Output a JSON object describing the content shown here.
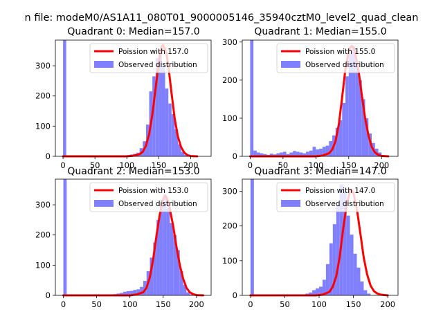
{
  "figure": {
    "suptitle": "n file: modeM0/AS1A11_080T01_9000005146_35940cztM0_level2_quad_clean"
  },
  "colors": {
    "hist": "#8080ff",
    "poisson": "#ff0000",
    "axis": "#000000"
  },
  "chart_data": [
    {
      "type": "bar",
      "title": "Quadrant 0: Median=157.0",
      "legend": [
        "Poission with 157.0",
        "Observed distribution"
      ],
      "legend_loc": "upper-right",
      "median": 157.0,
      "xlim": [
        -12,
        232
      ],
      "ylim": [
        0,
        385
      ],
      "xticks": [
        0,
        50,
        100,
        150,
        200
      ],
      "yticks": [
        0,
        100,
        200,
        300
      ],
      "bin_width": 5,
      "bin_start": 0,
      "values": [
        385,
        0,
        0,
        0,
        0,
        0,
        0,
        0,
        0,
        0,
        0,
        0,
        0,
        0,
        0,
        0,
        0,
        0,
        0,
        0,
        4,
        6,
        8,
        12,
        27,
        50,
        105,
        215,
        265,
        325,
        350,
        300,
        225,
        175,
        140,
        90,
        40,
        15,
        5,
        0,
        0,
        0
      ],
      "poisson_x": [
        0,
        100,
        110,
        120,
        125,
        130,
        135,
        140,
        145,
        150,
        152,
        155,
        157,
        160,
        162,
        165,
        170,
        175,
        180,
        185,
        190,
        195,
        200,
        210
      ],
      "poisson_y": [
        0,
        0,
        2,
        7,
        15,
        35,
        75,
        140,
        225,
        310,
        340,
        365,
        368,
        355,
        340,
        300,
        210,
        125,
        65,
        30,
        12,
        4,
        1,
        0
      ]
    },
    {
      "type": "bar",
      "title": "Quadrant 1: Median=155.0",
      "legend": [
        "Poission with 155.0",
        "Observed distribution"
      ],
      "legend_loc": "upper-right",
      "median": 155.0,
      "xlim": [
        -12,
        225
      ],
      "ylim": [
        0,
        305
      ],
      "xticks": [
        0,
        50,
        100,
        150,
        200
      ],
      "yticks": [
        0,
        100,
        200,
        300
      ],
      "bin_width": 5,
      "bin_start": 0,
      "values": [
        305,
        15,
        10,
        8,
        6,
        4,
        7,
        5,
        8,
        10,
        12,
        6,
        10,
        14,
        12,
        10,
        8,
        12,
        15,
        25,
        18,
        20,
        25,
        28,
        40,
        55,
        75,
        95,
        140,
        210,
        270,
        290,
        250,
        200,
        150,
        100,
        60,
        35,
        20,
        10,
        0
      ],
      "poisson_x": [
        0,
        100,
        110,
        120,
        125,
        130,
        135,
        140,
        145,
        150,
        152,
        155,
        158,
        160,
        165,
        170,
        175,
        180,
        185,
        190,
        195,
        200,
        210
      ],
      "poisson_y": [
        0,
        0,
        2,
        8,
        18,
        40,
        85,
        155,
        230,
        275,
        285,
        290,
        282,
        270,
        225,
        160,
        100,
        55,
        25,
        10,
        4,
        1,
        0
      ]
    },
    {
      "type": "bar",
      "title": "Quadrant 2: Median=153.0",
      "legend": [
        "Poission with 153.0",
        "Observed distribution"
      ],
      "legend_loc": "upper-right",
      "median": 153.0,
      "xlim": [
        -12,
        222
      ],
      "ylim": [
        0,
        385
      ],
      "xticks": [
        0,
        50,
        100,
        150,
        200
      ],
      "yticks": [
        0,
        100,
        200,
        300
      ],
      "bin_width": 5,
      "bin_start": 0,
      "values": [
        385,
        0,
        0,
        0,
        0,
        0,
        0,
        0,
        0,
        0,
        0,
        0,
        0,
        3,
        2,
        4,
        6,
        8,
        12,
        14,
        15,
        18,
        20,
        28,
        48,
        80,
        125,
        175,
        250,
        310,
        335,
        290,
        240,
        200,
        150,
        80,
        35,
        10,
        3,
        0
      ],
      "poisson_x": [
        0,
        100,
        110,
        120,
        125,
        130,
        135,
        140,
        145,
        150,
        153,
        155,
        158,
        160,
        165,
        170,
        175,
        180,
        185,
        190,
        195,
        200,
        210
      ],
      "poisson_y": [
        0,
        0,
        3,
        10,
        25,
        60,
        120,
        200,
        270,
        320,
        330,
        325,
        305,
        285,
        230,
        160,
        100,
        55,
        25,
        10,
        4,
        1,
        0
      ]
    },
    {
      "type": "bar",
      "title": "Quadrant 3: Median=147.0",
      "legend": [
        "Poission with 147.0",
        "Observed distribution"
      ],
      "legend_loc": "upper-right",
      "median": 147.0,
      "xlim": [
        -12,
        215
      ],
      "ylim": [
        0,
        335
      ],
      "xticks": [
        0,
        50,
        100,
        150,
        200
      ],
      "yticks": [
        0,
        100,
        200,
        300
      ],
      "bin_width": 5,
      "bin_start": 0,
      "values": [
        335,
        0,
        0,
        0,
        0,
        0,
        0,
        0,
        0,
        0,
        0,
        0,
        0,
        0,
        0,
        0,
        5,
        8,
        15,
        20,
        25,
        45,
        90,
        150,
        205,
        260,
        320,
        300,
        230,
        175,
        120,
        80,
        40,
        15,
        5,
        0,
        0
      ],
      "poisson_x": [
        0,
        95,
        105,
        115,
        120,
        125,
        130,
        135,
        140,
        145,
        147,
        150,
        155,
        160,
        165,
        170,
        175,
        180,
        185,
        190,
        200
      ],
      "poisson_y": [
        0,
        0,
        2,
        10,
        25,
        55,
        110,
        190,
        260,
        300,
        305,
        295,
        250,
        180,
        110,
        60,
        28,
        12,
        5,
        2,
        0
      ]
    }
  ]
}
